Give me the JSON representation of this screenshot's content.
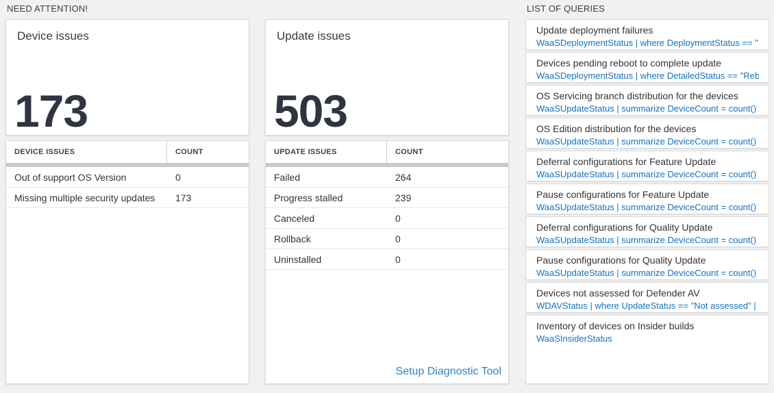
{
  "colors": {
    "page_background": "#f1f1f1",
    "panel_background": "#ffffff",
    "panel_border": "#d9d9d9",
    "query_blue": "#0f72c6",
    "link_blue": "#2a85d0",
    "count_dark": "#2e3440",
    "scroll_track_gray": "#c7c9cb"
  },
  "sections": {
    "need_attention_header": "NEED ATTENTION!",
    "list_of_queries_header": "LIST OF QUERIES"
  },
  "device_card": {
    "title": "Device issues",
    "count": "173"
  },
  "device_table": {
    "headers": [
      "DEVICE ISSUES",
      "COUNT"
    ],
    "rows": [
      {
        "label": "Out of support OS Version",
        "count": "0"
      },
      {
        "label": "Missing multiple security updates",
        "count": "173"
      }
    ]
  },
  "update_card": {
    "title": "Update issues",
    "count": "503"
  },
  "update_table": {
    "headers": [
      "UPDATE ISSUES",
      "COUNT"
    ],
    "rows": [
      {
        "label": "Failed",
        "count": "264"
      },
      {
        "label": "Progress stalled",
        "count": "239"
      },
      {
        "label": "Canceled",
        "count": "0"
      },
      {
        "label": "Rollback",
        "count": "0"
      },
      {
        "label": "Uninstalled",
        "count": "0"
      }
    ],
    "footer_link": "Setup Diagnostic Tool"
  },
  "queries": {
    "items": [
      {
        "title": "Update deployment failures",
        "query": "WaaSDeploymentStatus | where DeploymentStatus == \"Failed\" |..."
      },
      {
        "title": "Devices pending reboot to complete update",
        "query": "WaaSDeploymentStatus | where DetailedStatus == \"Reboot pend..."
      },
      {
        "title": "OS Servicing branch distribution for the devices",
        "query": "WaaSUpdateStatus | summarize DeviceCount = count() by OSSer..."
      },
      {
        "title": "OS Edition distribution for the devices",
        "query": "WaaSUpdateStatus | summarize DeviceCount = count() by OSEdit..."
      },
      {
        "title": "Deferral configurations for Feature Update",
        "query": "WaaSUpdateStatus | summarize DeviceCount = count() by Featur..."
      },
      {
        "title": "Pause configurations for Feature Update",
        "query": "WaaSUpdateStatus | summarize DeviceCount = count() by Featur..."
      },
      {
        "title": "Deferral configurations for Quality Update",
        "query": "WaaSUpdateStatus | summarize DeviceCount = count() by Qualit..."
      },
      {
        "title": "Pause configurations for Quality Update",
        "query": "WaaSUpdateStatus | summarize DeviceCount = count() by Qualit..."
      },
      {
        "title": "Devices not assessed for Defender AV",
        "query": "WDAVStatus | where UpdateStatus == \"Not assessed\" | render ta..."
      },
      {
        "title": "Inventory of devices on Insider builds",
        "query": "WaaSInsiderStatus"
      }
    ]
  }
}
